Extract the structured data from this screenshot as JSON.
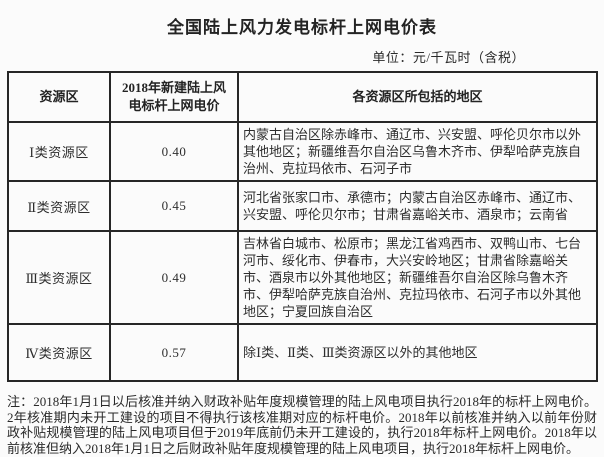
{
  "page": {
    "title": "全国陆上风力发电标杆上网电价表",
    "unit_label": "单位：元/千瓦时（含税）",
    "footnote": "注：2018年1月1日以后核准并纳入财政补贴年度规模管理的陆上风电项目执行2018年的标杆上网电价。2年核准期内未开工建设的项目不得执行该核准期对应的标杆电价。2018年以前核准并纳入以前年份财政补贴规模管理的陆上风电项目但于2019年底前仍未开工建设的，执行2018年标杆上网电价。2018年以前核准但纳入2018年1月1日之后财政补贴年度规模管理的陆上风电项目，执行2018年标杆上网电价。"
  },
  "table": {
    "columns": [
      "资源区",
      "2018年新建陆上风电标杆上网电价",
      "各资源区所包括的地区"
    ],
    "rows": [
      {
        "region": "Ⅰ类资源区",
        "price": "0.40",
        "areas": "内蒙古自治区除赤峰市、通辽市、兴安盟、呼伦贝尔市以外其他地区；新疆维吾尔自治区乌鲁木齐市、伊犁哈萨克族自治州、克拉玛依市、石河子市"
      },
      {
        "region": "Ⅱ类资源区",
        "price": "0.45",
        "areas": "河北省张家口市、承德市；内蒙古自治区赤峰市、通辽市、兴安盟、呼伦贝尔市；甘肃省嘉峪关市、酒泉市；云南省"
      },
      {
        "region": "Ⅲ类资源区",
        "price": "0.49",
        "areas": "吉林省白城市、松原市；黑龙江省鸡西市、双鸭山市、七台河市、绥化市、伊春市，大兴安岭地区；甘肃省除嘉峪关市、酒泉市以外其他地区；新疆维吾尔自治区除乌鲁木齐市、伊犁哈萨克族自治州、克拉玛依市、石河子市以外其他地区；宁夏回族自治区"
      },
      {
        "region": "Ⅳ类资源区",
        "price": "0.57",
        "areas": "除Ⅰ类、Ⅱ类、Ⅲ类资源区以外的其他地区"
      }
    ]
  },
  "colors": {
    "background": "#fbfbfb",
    "border": "#262626",
    "text": "#2a2a2a"
  }
}
